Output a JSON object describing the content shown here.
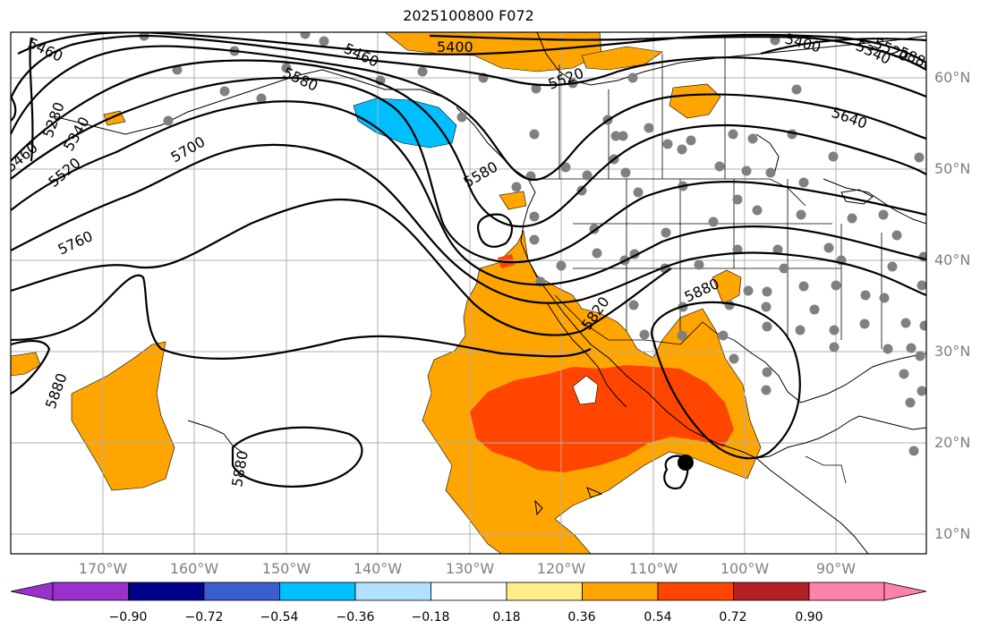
{
  "title": "2025100800 F072",
  "lat_labels": [
    "60°N",
    "50°N",
    "40°N",
    "30°N",
    "20°N",
    "10°N"
  ],
  "lon_labels": [
    "170°W",
    "160°W",
    "150°W",
    "140°W",
    "130°W",
    "120°W",
    "110°W",
    "100°W",
    "90°W"
  ],
  "contour_labels": [
    "5400",
    "5460",
    "5460",
    "5520",
    "5580",
    "5520",
    "5340",
    "5280",
    "5340",
    "5520",
    "5460",
    "5400",
    "5580",
    "5640",
    "5700",
    "5760",
    "5820",
    "5880",
    "5880",
    "5880",
    "5880"
  ],
  "colorbar": {
    "tick_labels": [
      "−0.90",
      "−0.72",
      "−0.54",
      "−0.36",
      "−0.18",
      "0.18",
      "0.36",
      "0.54",
      "0.72",
      "0.90"
    ],
    "colors": [
      "#9932CC",
      "#00008B",
      "#3A5FCD",
      "#00BFFF",
      "#B0E2FF",
      "#FFFFFF",
      "#FFEC8B",
      "#FFA500",
      "#FF4500",
      "#B22222",
      "#FF82AB"
    ]
  },
  "fill_colors": {
    "orange": "#FFA500",
    "red_orange": "#FF4500",
    "sky_blue": "#00BFFF",
    "station_gray": "#808080"
  }
}
